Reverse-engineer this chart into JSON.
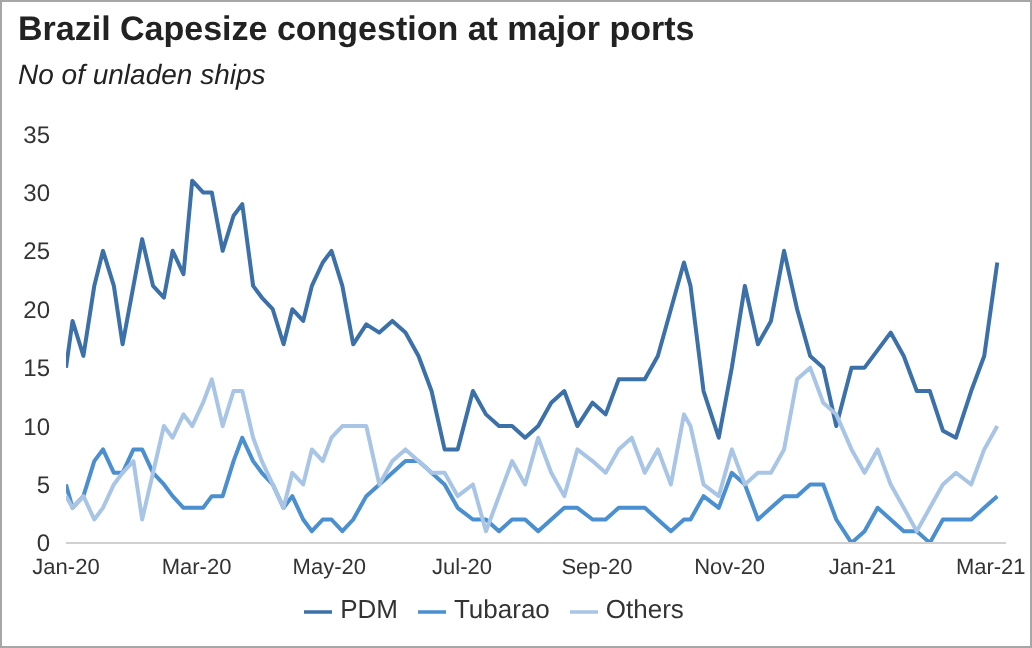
{
  "chart_data": {
    "type": "line",
    "title": "Brazil Capesize congestion at major ports",
    "subtitle": "No of unladen ships",
    "x": [
      "2020-01-01",
      "2020-01-04",
      "2020-01-09",
      "2020-01-14",
      "2020-01-18",
      "2020-01-23",
      "2020-01-27",
      "2020-02-01",
      "2020-02-05",
      "2020-02-10",
      "2020-02-15",
      "2020-02-19",
      "2020-02-24",
      "2020-02-28",
      "2020-03-04",
      "2020-03-08",
      "2020-03-13",
      "2020-03-18",
      "2020-03-22",
      "2020-03-27",
      "2020-03-31",
      "2020-04-05",
      "2020-04-10",
      "2020-04-14",
      "2020-04-19",
      "2020-04-23",
      "2020-04-28",
      "2020-05-02",
      "2020-05-07",
      "2020-05-12",
      "2020-05-18",
      "2020-05-24",
      "2020-05-30",
      "2020-06-05",
      "2020-06-11",
      "2020-06-17",
      "2020-06-23",
      "2020-06-29",
      "2020-07-06",
      "2020-07-12",
      "2020-07-18",
      "2020-07-24",
      "2020-07-30",
      "2020-08-05",
      "2020-08-11",
      "2020-08-17",
      "2020-08-23",
      "2020-08-30",
      "2020-09-05",
      "2020-09-11",
      "2020-09-17",
      "2020-09-23",
      "2020-09-29",
      "2020-10-05",
      "2020-10-11",
      "2020-10-14",
      "2020-10-20",
      "2020-10-27",
      "2020-11-02",
      "2020-11-08",
      "2020-11-14",
      "2020-11-20",
      "2020-11-26",
      "2020-12-02",
      "2020-12-08",
      "2020-12-14",
      "2020-12-20",
      "2020-12-27",
      "2021-01-02",
      "2021-01-08",
      "2021-01-14",
      "2021-01-20",
      "2021-01-26",
      "2021-02-01",
      "2021-02-07",
      "2021-02-13",
      "2021-02-20",
      "2021-02-26",
      "2021-03-04"
    ],
    "series": [
      {
        "name": "PDM",
        "color": "#3b70a8",
        "values": [
          15,
          19,
          16,
          22,
          25,
          22,
          17,
          22,
          26,
          22,
          21,
          25,
          23,
          31,
          30,
          30,
          25,
          28,
          29,
          22,
          21,
          20,
          17,
          20,
          19,
          22,
          24,
          25,
          22,
          17,
          18.7,
          18,
          19,
          18,
          16,
          13,
          8,
          8,
          13,
          11,
          10,
          10,
          9,
          10,
          12,
          13,
          10,
          12,
          11,
          14,
          14,
          14,
          16,
          20,
          24,
          22,
          13,
          9,
          15,
          22,
          17,
          19,
          25,
          20,
          16,
          15,
          10,
          15,
          15,
          16.5,
          18,
          16,
          13,
          13,
          9.6,
          9,
          13,
          16,
          24
        ]
      },
      {
        "name": "Tubarao",
        "color": "#4a8fd0",
        "values": [
          5,
          3,
          4,
          7,
          8,
          6,
          6,
          8,
          8,
          6,
          5,
          4,
          3,
          3,
          3,
          4,
          4,
          7,
          9,
          7,
          6,
          5,
          3,
          4,
          2,
          1,
          2,
          2,
          1,
          2,
          4,
          5,
          6,
          7,
          7,
          6,
          5,
          3,
          2,
          2,
          1,
          2,
          2,
          1,
          2,
          3,
          3,
          2,
          2,
          3,
          3,
          3,
          2,
          1,
          2,
          2,
          4,
          3,
          6,
          5,
          2,
          3,
          4,
          4,
          5,
          5,
          2,
          0,
          1,
          3,
          2,
          1,
          1,
          0,
          2,
          2,
          2,
          3,
          4
        ]
      },
      {
        "name": "Others",
        "color": "#a9c5e6",
        "values": [
          4,
          3,
          4,
          2,
          3,
          5,
          6,
          7,
          2,
          6,
          10,
          9,
          11,
          10,
          12,
          14,
          10,
          13,
          13,
          9,
          7,
          5,
          3,
          6,
          5,
          8,
          7,
          9,
          10,
          10,
          10,
          5,
          7,
          8,
          7,
          6,
          6,
          4,
          5,
          1,
          4,
          7,
          5,
          9,
          6,
          4,
          8,
          7,
          6,
          8,
          9,
          6,
          8,
          5,
          11,
          10,
          5,
          4,
          8,
          5,
          6,
          6,
          8,
          14,
          15,
          12,
          11,
          8,
          6,
          8,
          5,
          3,
          1,
          3,
          5,
          6,
          5,
          8,
          10
        ]
      }
    ],
    "xlim": [
      "2020-01-01",
      "2021-03-08"
    ],
    "xticks": [
      {
        "value": "2020-01-01",
        "label": "Jan-20"
      },
      {
        "value": "2020-03-01",
        "label": "Mar-20"
      },
      {
        "value": "2020-05-01",
        "label": "May-20"
      },
      {
        "value": "2020-07-01",
        "label": "Jul-20"
      },
      {
        "value": "2020-09-01",
        "label": "Sep-20"
      },
      {
        "value": "2020-11-01",
        "label": "Nov-20"
      },
      {
        "value": "2021-01-01",
        "label": "Jan-21"
      },
      {
        "value": "2021-03-01",
        "label": "Mar-21"
      }
    ],
    "ylim": [
      0,
      35
    ],
    "yticks": [
      0,
      5,
      10,
      15,
      20,
      25,
      30,
      35
    ],
    "grid": false,
    "legend": "bottom",
    "marker": "none",
    "line_style": "solid"
  }
}
